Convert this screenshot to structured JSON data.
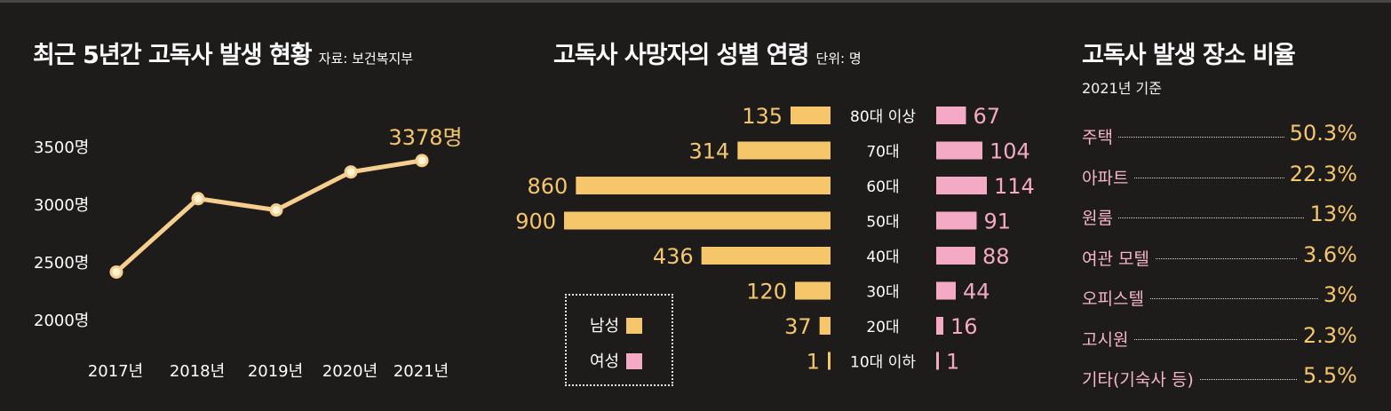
{
  "panels": {
    "trend": {
      "title": "최근 5년간 고독사 발생 현황",
      "source": "자료: 보건복지부"
    },
    "gender_age": {
      "title": "고독사 사망자의 성별 연령",
      "unit": "단위: 명",
      "legend": {
        "male": "남성",
        "female": "여성"
      }
    },
    "place": {
      "title": "고독사 발생 장소 비율",
      "subtitle": "2021년 기준"
    }
  },
  "colors": {
    "background": "#1e1b1b",
    "line": "#f6cf8e",
    "male": "#f5c76a",
    "female": "#f4a9c4",
    "text": "#ffffff"
  },
  "chart_data": [
    {
      "type": "line",
      "title": "최근 5년간 고독사 발생 현황",
      "x": [
        "2017년",
        "2018년",
        "2019년",
        "2020년",
        "2021년"
      ],
      "series": [
        {
          "values": [
            2412,
            3048,
            2949,
            3279,
            3378
          ]
        }
      ],
      "yticks": [
        "2000명",
        "2500명",
        "3000명",
        "3500명"
      ],
      "ylim": [
        2000,
        3500
      ],
      "annotation": "3378명",
      "grid": false
    },
    {
      "type": "bar",
      "title": "고독사 사망자의 성별 연령",
      "categories": [
        "80대 이상",
        "70대",
        "60대",
        "50대",
        "40대",
        "30대",
        "20대",
        "10대 이하"
      ],
      "series": [
        {
          "name": "남성",
          "values": [
            135,
            314,
            860,
            900,
            436,
            120,
            37,
            1
          ]
        },
        {
          "name": "여성",
          "values": [
            67,
            104,
            114,
            91,
            88,
            44,
            16,
            1
          ]
        }
      ],
      "legend": "bottom-left"
    },
    {
      "type": "table",
      "title": "고독사 발생 장소 비율",
      "subtitle": "2021년 기준",
      "rows": [
        {
          "label": "주택",
          "value": "50.3%"
        },
        {
          "label": "아파트",
          "value": "22.3%"
        },
        {
          "label": "원룸",
          "value": "13%"
        },
        {
          "label": "여관 모텔",
          "value": "3.6%"
        },
        {
          "label": "오피스텔",
          "value": "3%"
        },
        {
          "label": "고시원",
          "value": "2.3%"
        },
        {
          "label": "기타(기숙사 등)",
          "value": "5.5%"
        }
      ]
    }
  ]
}
